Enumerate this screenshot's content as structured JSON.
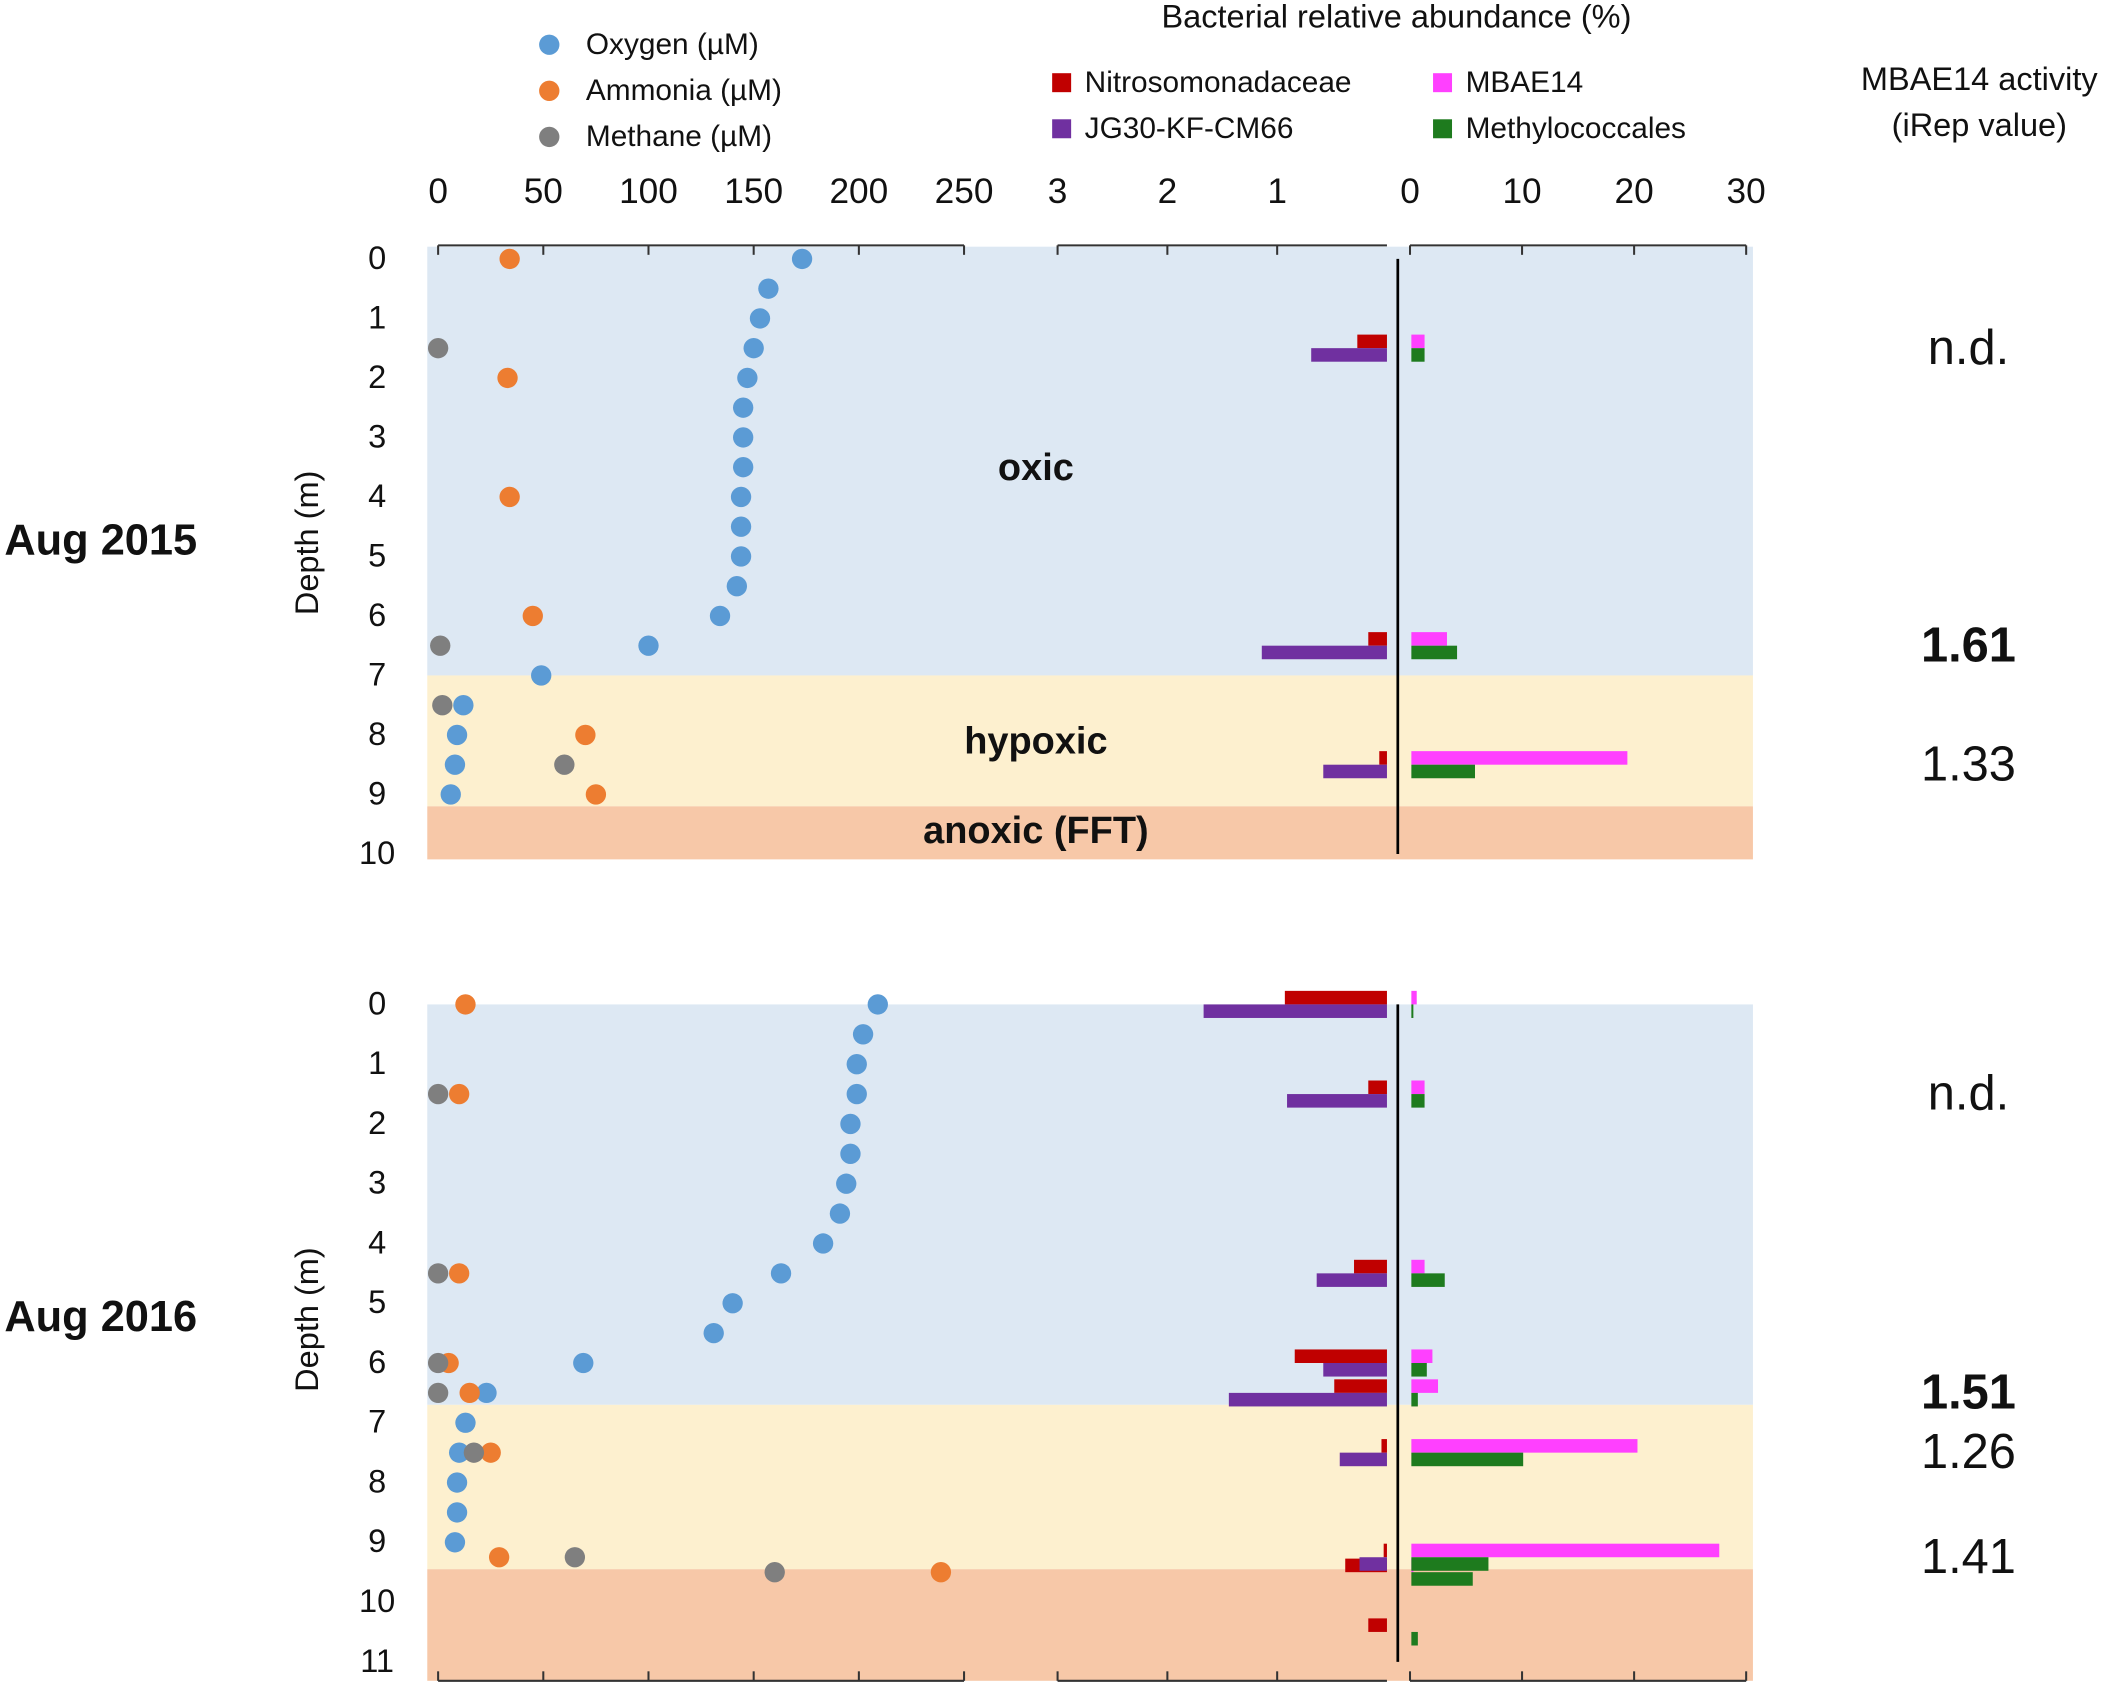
{
  "chart_data": [
    {
      "type": "scatter",
      "label": "Aug 2015",
      "ylabel": "Depth (m)",
      "ylim": [
        0,
        10
      ],
      "yticks": [
        0,
        1,
        2,
        3,
        4,
        5,
        6,
        7,
        8,
        9,
        10
      ],
      "xlim": [
        0,
        250
      ],
      "xticks": [
        0,
        50,
        100,
        150,
        200,
        250
      ],
      "zones": [
        {
          "label": "oxic",
          "from": 0,
          "to": 7,
          "color": "#dde8f3"
        },
        {
          "label": "hypoxic",
          "from": 7,
          "to": 9.2,
          "color": "#fdf0cf"
        },
        {
          "label": "anoxic (FFT)",
          "from": 9.2,
          "to": 10,
          "color": "#f7c8a8"
        }
      ],
      "series": [
        {
          "name": "Oxygen (µM)",
          "color": "#5b9bd5",
          "x": [
            173,
            157,
            153,
            150,
            147,
            145,
            145,
            145,
            144,
            144,
            144,
            142,
            134,
            100,
            49,
            12,
            9,
            8,
            6
          ],
          "y": [
            0,
            0.5,
            1,
            1.5,
            2,
            2.5,
            3,
            3.5,
            4,
            4.5,
            5,
            5.5,
            6,
            6.5,
            7,
            7.5,
            8,
            8.5,
            9
          ]
        },
        {
          "name": "Ammonia (µM)",
          "color": "#ed7d31",
          "x": [
            34,
            33,
            34,
            45,
            70,
            75
          ],
          "y": [
            0,
            2,
            4,
            6,
            8,
            9
          ]
        },
        {
          "name": "Methane (µM)",
          "color": "#7f7f7f",
          "x": [
            0,
            1,
            2,
            60
          ],
          "y": [
            1.5,
            6.5,
            7.5,
            8.5
          ]
        }
      ]
    },
    {
      "type": "bar",
      "title": "Bacterial relative abundance (%)",
      "xlim": [
        0,
        3
      ],
      "xticks": [
        3,
        2,
        1
      ],
      "xreversed": true,
      "x2lim": [
        0,
        30
      ],
      "x2ticks": [
        0,
        10,
        20,
        30
      ],
      "y": [
        1.5,
        6.5,
        8.5
      ],
      "series": [
        {
          "name": "Nitrosomonadaceae",
          "color": "#c00000",
          "axis": "x",
          "values": [
            0.27,
            0.17,
            0.07
          ]
        },
        {
          "name": "JG30-KF-CM66",
          "color": "#7030a0",
          "axis": "x",
          "values": [
            0.69,
            1.14,
            0.58
          ]
        },
        {
          "name": "MBAE14",
          "color": "#ff40ff",
          "axis": "x2",
          "values": [
            1.3,
            3.3,
            19.4
          ]
        },
        {
          "name": "Methylococcales",
          "color": "#1e7b1e",
          "axis": "x2",
          "values": [
            1.3,
            4.2,
            5.8
          ]
        }
      ],
      "activity_title": [
        "MBAE14 activity",
        "(iRep value)"
      ],
      "activity": [
        {
          "depth": 1.5,
          "label": "n.d.",
          "color": "#999999"
        },
        {
          "depth": 6.5,
          "value": 1.61,
          "color": "#ff40ff",
          "bold": true
        },
        {
          "depth": 8.5,
          "value": 1.33,
          "color": "#ff40ff"
        }
      ]
    },
    {
      "type": "scatter",
      "label": "Aug 2016",
      "ylabel": "Depth (m)",
      "ylim": [
        0,
        11
      ],
      "yticks": [
        0,
        1,
        2,
        3,
        4,
        5,
        6,
        7,
        8,
        9,
        10,
        11
      ],
      "zones": [
        {
          "from": 0,
          "to": 6.7,
          "color": "#dde8f3"
        },
        {
          "from": 6.7,
          "to": 9.45,
          "color": "#fdf0cf"
        },
        {
          "from": 9.45,
          "to": 11,
          "color": "#f7c8a8"
        }
      ],
      "series": [
        {
          "color": "#5b9bd5",
          "x": [
            209,
            202,
            199,
            199,
            196,
            196,
            194,
            191,
            183,
            163,
            140,
            131,
            69,
            23,
            13,
            10,
            9,
            9,
            8
          ],
          "y": [
            0,
            0.5,
            1,
            1.5,
            2,
            2.5,
            3,
            3.5,
            4,
            4.5,
            5,
            5.5,
            6,
            6.5,
            7,
            7.5,
            8,
            8.5,
            9
          ]
        },
        {
          "color": "#ed7d31",
          "x": [
            13,
            10,
            10,
            5,
            15,
            25,
            29,
            239
          ],
          "y": [
            0,
            1.5,
            4.5,
            6,
            6.5,
            7.5,
            9.25,
            9.5
          ]
        },
        {
          "color": "#7f7f7f",
          "x": [
            0,
            0,
            0,
            0,
            17,
            65,
            160
          ],
          "y": [
            1.5,
            4.5,
            6,
            6.5,
            7.5,
            9.25,
            9.5
          ]
        }
      ]
    },
    {
      "type": "bar",
      "y": [
        0,
        1.5,
        4.5,
        6,
        6.5,
        7.5,
        9.25,
        9.5,
        10.5
      ],
      "series": [
        {
          "color": "#c00000",
          "axis": "x",
          "values": [
            0.93,
            0.17,
            0.3,
            0.84,
            0.48,
            0.05,
            0.03,
            0.38,
            0.17
          ]
        },
        {
          "color": "#7030a0",
          "axis": "x",
          "values": [
            1.67,
            0.91,
            0.64,
            0.58,
            1.44,
            0.43,
            0.25,
            null,
            null
          ]
        },
        {
          "color": "#ff40ff",
          "axis": "x2",
          "values": [
            0.6,
            1.3,
            1.3,
            2,
            2.5,
            20.3,
            27.6,
            0.3,
            null
          ]
        },
        {
          "color": "#1e7b1e",
          "axis": "x2",
          "values": [
            0.3,
            1.3,
            3.1,
            1.5,
            0.7,
            10.1,
            7,
            5.6,
            0.7
          ]
        }
      ],
      "activity": [
        {
          "depth": 1.5,
          "label": "n.d.",
          "color": "#999999"
        },
        {
          "depth": 6.5,
          "value": 1.51,
          "color": "#ff40ff",
          "bold": true
        },
        {
          "depth": 7.5,
          "value": 1.26,
          "color": "#ff40ff"
        },
        {
          "depth": 9.25,
          "value": 1.41,
          "color": "#ff40ff"
        }
      ]
    }
  ]
}
